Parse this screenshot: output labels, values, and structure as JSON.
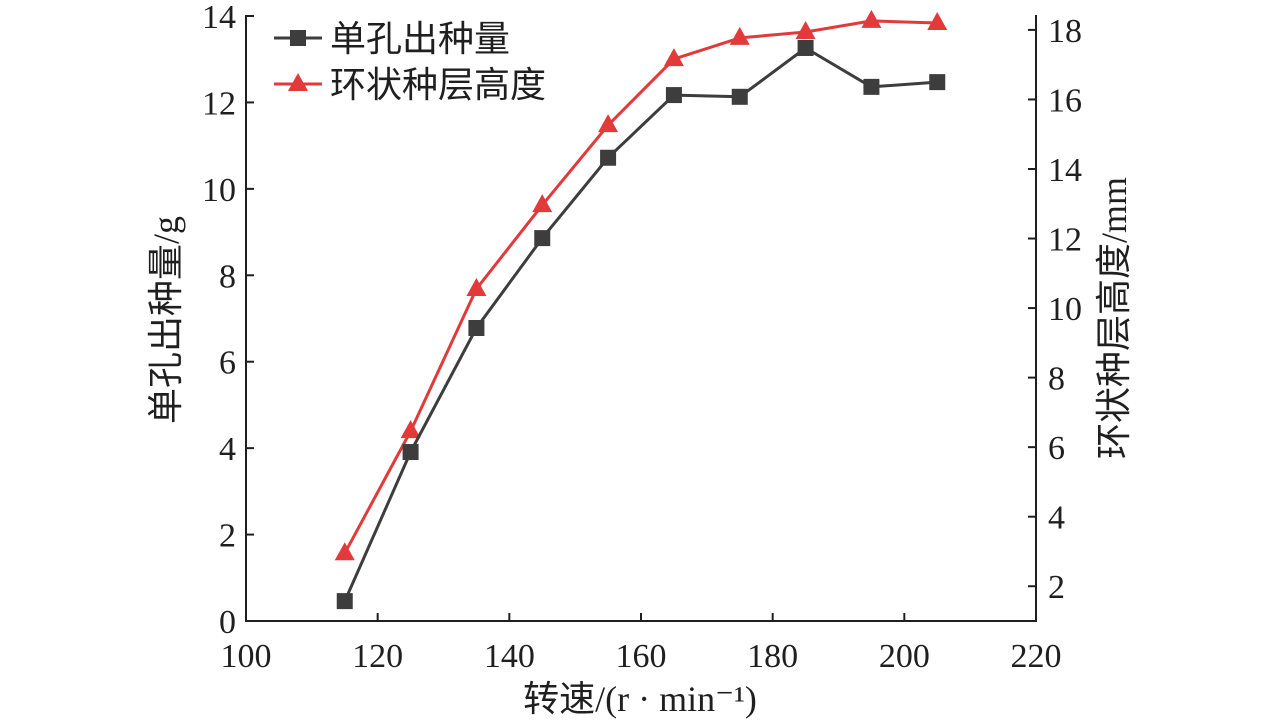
{
  "chart_data": {
    "type": "line",
    "xlabel": "转速/(r · min⁻¹)",
    "ylabel": "单孔出种量/g",
    "y2label": "环状种层高度/mm",
    "x": [
      115,
      125,
      135,
      145,
      155,
      165,
      175,
      185,
      195,
      205
    ],
    "xlim": [
      100,
      220
    ],
    "xticks": [
      100,
      120,
      140,
      160,
      180,
      200,
      220
    ],
    "ylim": [
      0,
      14
    ],
    "yticks": [
      0,
      2,
      4,
      6,
      8,
      10,
      12,
      14
    ],
    "y2lim": [
      1.0,
      18.4
    ],
    "y2ticks": [
      2,
      4,
      6,
      8,
      10,
      12,
      14,
      16,
      18
    ],
    "grid": false,
    "legend": "top-left",
    "series": [
      {
        "name": "单孔出种量",
        "axis": "left",
        "marker": "square",
        "color": "#3d3d3d",
        "values": [
          0.46,
          3.91,
          6.78,
          8.86,
          10.72,
          12.17,
          12.13,
          13.26,
          12.36,
          12.47
        ]
      },
      {
        "name": "环状种层高度",
        "axis": "right",
        "marker": "triangle",
        "color": "#e23a3a",
        "values": [
          2.95,
          6.46,
          10.55,
          12.96,
          15.26,
          17.16,
          17.77,
          17.94,
          18.26,
          18.2
        ]
      }
    ]
  }
}
